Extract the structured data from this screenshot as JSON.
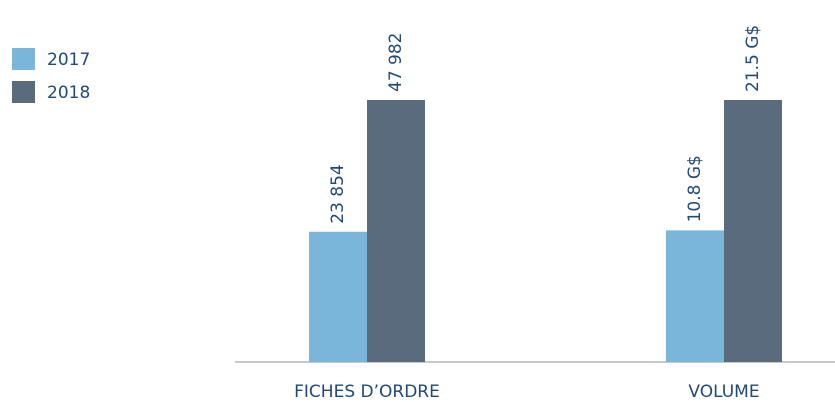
{
  "chart_data": {
    "type": "bar",
    "categories": [
      "FICHES D’ORDRE",
      "VOLUME"
    ],
    "series": [
      {
        "name": "2017",
        "color": "#7ab6d9",
        "values": [
          23854,
          10.8
        ],
        "value_labels": [
          "23 854",
          "10.8 G$"
        ]
      },
      {
        "name": "2018",
        "color": "#5b6b7e",
        "values": [
          47982,
          21.5
        ],
        "value_labels": [
          "47 982",
          "21.5 G$"
        ]
      }
    ],
    "legend": "top-left"
  }
}
